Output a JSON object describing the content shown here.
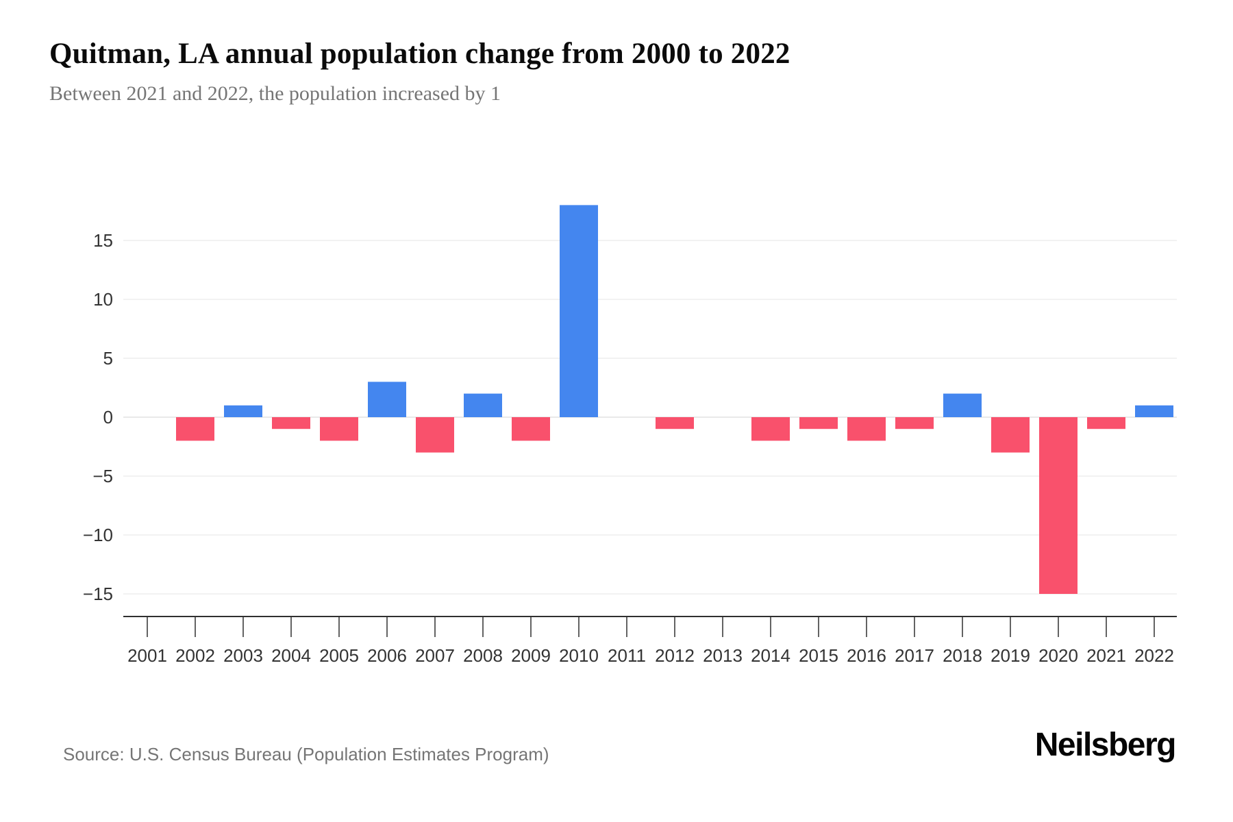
{
  "header": {
    "title": "Quitman, LA annual population change from 2000 to 2022",
    "subtitle": "Between 2021 and 2022, the population increased by 1"
  },
  "chart_data": {
    "type": "bar",
    "categories": [
      "2001",
      "2002",
      "2003",
      "2004",
      "2005",
      "2006",
      "2007",
      "2008",
      "2009",
      "2010",
      "2011",
      "2012",
      "2013",
      "2014",
      "2015",
      "2016",
      "2017",
      "2018",
      "2019",
      "2020",
      "2021",
      "2022"
    ],
    "values": [
      0,
      -2,
      1,
      -1,
      -2,
      3,
      -3,
      2,
      -2,
      18,
      0,
      -1,
      0,
      -2,
      -1,
      -2,
      -1,
      2,
      -3,
      -15,
      -1,
      1
    ],
    "title": "Quitman, LA annual population change from 2000 to 2022",
    "xlabel": "",
    "ylabel": "",
    "ylim": [
      -17,
      19
    ],
    "yticks": [
      15,
      10,
      5,
      0,
      -5,
      -10,
      -15
    ],
    "ytick_labels": [
      "15",
      "10",
      "5",
      "0",
      "−5",
      "−10",
      "−15"
    ],
    "grid": true,
    "legend": false,
    "colors": {
      "positive": "#4486ef",
      "negative": "#f9516c",
      "gridline": "#f2f2f2",
      "zero_gridline": "#e9e9e9",
      "axis": "#2f2f2f",
      "tick_label": "#333333"
    }
  },
  "footer": {
    "source": "Source: U.S. Census Bureau (Population Estimates Program)",
    "brand": "Neilsberg"
  }
}
